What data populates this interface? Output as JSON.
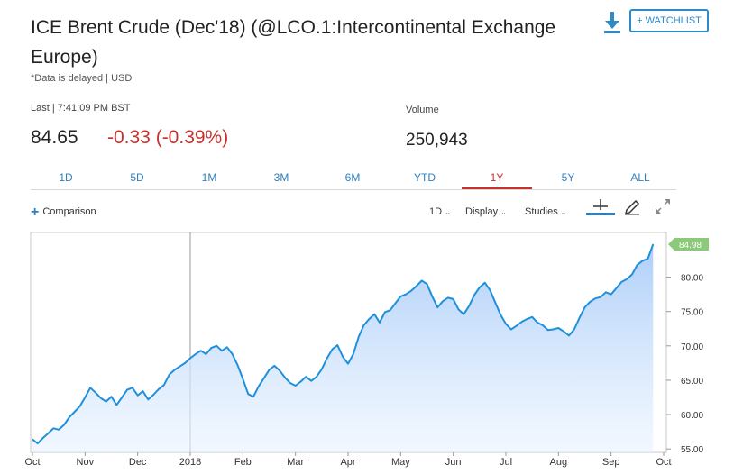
{
  "header": {
    "title": "ICE Brent Crude (Dec'18) (@LCO.1:Intercontinental Exchange Europe)",
    "watchlist_label": "+ WATCHLIST",
    "download_icon": "download-icon",
    "delayed_note": "*Data is delayed | USD"
  },
  "quote": {
    "last_label": "Last | 7:41:09 PM BST",
    "price": "84.65",
    "change": "-0.33 (-0.39%)",
    "change_color": "#c9302c",
    "volume_label": "Volume",
    "volume": "250,943"
  },
  "ranges": [
    "1D",
    "5D",
    "1M",
    "3M",
    "6M",
    "YTD",
    "1Y",
    "5Y",
    "ALL"
  ],
  "active_range": "1Y",
  "toolbar": {
    "comparison_label": "Comparison",
    "interval_label": "1D",
    "display_label": "Display",
    "studies_label": "Studies",
    "crosshair_icon": "crosshair-icon",
    "draw_icon": "pencil-icon",
    "expand_icon": "expand-icon"
  },
  "chart_data": {
    "type": "area",
    "title": "",
    "xlabel": "",
    "ylabel": "",
    "x_ticks": [
      "Oct",
      "Nov",
      "Dec",
      "2018",
      "Feb",
      "Mar",
      "Apr",
      "May",
      "Jun",
      "Jul",
      "Aug",
      "Sep",
      "Oct"
    ],
    "y_ticks": [
      "55.00",
      "60.00",
      "65.00",
      "70.00",
      "75.00",
      "80.00"
    ],
    "ylim": [
      54.5,
      86.5
    ],
    "last_value_label": "84.98",
    "line_color": "#1e90dc",
    "fill_color": "#a9ccf8",
    "grid": "vertical line at year boundary",
    "series": [
      {
        "x": 0,
        "y": 56.4
      },
      {
        "x": 0.1,
        "y": 55.8
      },
      {
        "x": 0.2,
        "y": 56.6
      },
      {
        "x": 0.3,
        "y": 57.3
      },
      {
        "x": 0.4,
        "y": 58.0
      },
      {
        "x": 0.5,
        "y": 57.8
      },
      {
        "x": 0.6,
        "y": 58.5
      },
      {
        "x": 0.7,
        "y": 59.6
      },
      {
        "x": 0.8,
        "y": 60.4
      },
      {
        "x": 0.9,
        "y": 61.2
      },
      {
        "x": 1.0,
        "y": 62.5
      },
      {
        "x": 1.1,
        "y": 63.9
      },
      {
        "x": 1.2,
        "y": 63.2
      },
      {
        "x": 1.3,
        "y": 62.4
      },
      {
        "x": 1.4,
        "y": 61.9
      },
      {
        "x": 1.5,
        "y": 62.6
      },
      {
        "x": 1.6,
        "y": 61.4
      },
      {
        "x": 1.7,
        "y": 62.5
      },
      {
        "x": 1.8,
        "y": 63.6
      },
      {
        "x": 1.9,
        "y": 63.9
      },
      {
        "x": 2.0,
        "y": 62.8
      },
      {
        "x": 2.1,
        "y": 63.4
      },
      {
        "x": 2.2,
        "y": 62.2
      },
      {
        "x": 2.3,
        "y": 62.9
      },
      {
        "x": 2.4,
        "y": 63.7
      },
      {
        "x": 2.5,
        "y": 64.3
      },
      {
        "x": 2.6,
        "y": 65.8
      },
      {
        "x": 2.7,
        "y": 66.5
      },
      {
        "x": 2.8,
        "y": 67.0
      },
      {
        "x": 2.9,
        "y": 67.5
      },
      {
        "x": 3.0,
        "y": 68.2
      },
      {
        "x": 3.1,
        "y": 68.8
      },
      {
        "x": 3.2,
        "y": 69.3
      },
      {
        "x": 3.3,
        "y": 68.8
      },
      {
        "x": 3.4,
        "y": 69.7
      },
      {
        "x": 3.5,
        "y": 70.0
      },
      {
        "x": 3.6,
        "y": 69.3
      },
      {
        "x": 3.7,
        "y": 69.8
      },
      {
        "x": 3.8,
        "y": 68.8
      },
      {
        "x": 3.9,
        "y": 67.2
      },
      {
        "x": 4.0,
        "y": 65.2
      },
      {
        "x": 4.1,
        "y": 63.0
      },
      {
        "x": 4.2,
        "y": 62.6
      },
      {
        "x": 4.3,
        "y": 64.1
      },
      {
        "x": 4.4,
        "y": 65.3
      },
      {
        "x": 4.5,
        "y": 66.5
      },
      {
        "x": 4.6,
        "y": 67.1
      },
      {
        "x": 4.7,
        "y": 66.4
      },
      {
        "x": 4.8,
        "y": 65.4
      },
      {
        "x": 4.9,
        "y": 64.6
      },
      {
        "x": 5.0,
        "y": 64.2
      },
      {
        "x": 5.1,
        "y": 64.8
      },
      {
        "x": 5.2,
        "y": 65.5
      },
      {
        "x": 5.3,
        "y": 64.9
      },
      {
        "x": 5.4,
        "y": 65.5
      },
      {
        "x": 5.5,
        "y": 66.6
      },
      {
        "x": 5.6,
        "y": 68.2
      },
      {
        "x": 5.7,
        "y": 69.5
      },
      {
        "x": 5.8,
        "y": 70.1
      },
      {
        "x": 5.9,
        "y": 68.4
      },
      {
        "x": 6.0,
        "y": 67.4
      },
      {
        "x": 6.1,
        "y": 68.8
      },
      {
        "x": 6.2,
        "y": 71.3
      },
      {
        "x": 6.3,
        "y": 73.0
      },
      {
        "x": 6.4,
        "y": 73.9
      },
      {
        "x": 6.5,
        "y": 74.6
      },
      {
        "x": 6.6,
        "y": 73.4
      },
      {
        "x": 6.7,
        "y": 74.9
      },
      {
        "x": 6.8,
        "y": 75.2
      },
      {
        "x": 6.9,
        "y": 76.2
      },
      {
        "x": 7.0,
        "y": 77.2
      },
      {
        "x": 7.1,
        "y": 77.5
      },
      {
        "x": 7.2,
        "y": 78.0
      },
      {
        "x": 7.3,
        "y": 78.7
      },
      {
        "x": 7.4,
        "y": 79.5
      },
      {
        "x": 7.5,
        "y": 79.0
      },
      {
        "x": 7.6,
        "y": 77.2
      },
      {
        "x": 7.7,
        "y": 75.6
      },
      {
        "x": 7.8,
        "y": 76.5
      },
      {
        "x": 7.9,
        "y": 77.0
      },
      {
        "x": 8.0,
        "y": 76.8
      },
      {
        "x": 8.1,
        "y": 75.3
      },
      {
        "x": 8.2,
        "y": 74.6
      },
      {
        "x": 8.3,
        "y": 75.8
      },
      {
        "x": 8.4,
        "y": 77.4
      },
      {
        "x": 8.5,
        "y": 78.5
      },
      {
        "x": 8.6,
        "y": 79.2
      },
      {
        "x": 8.7,
        "y": 78.1
      },
      {
        "x": 8.8,
        "y": 76.3
      },
      {
        "x": 8.9,
        "y": 74.5
      },
      {
        "x": 9.0,
        "y": 73.2
      },
      {
        "x": 9.1,
        "y": 72.4
      },
      {
        "x": 9.2,
        "y": 72.9
      },
      {
        "x": 9.3,
        "y": 73.5
      },
      {
        "x": 9.4,
        "y": 73.9
      },
      {
        "x": 9.5,
        "y": 74.2
      },
      {
        "x": 9.6,
        "y": 73.4
      },
      {
        "x": 9.7,
        "y": 73.0
      },
      {
        "x": 9.8,
        "y": 72.3
      },
      {
        "x": 9.9,
        "y": 72.4
      },
      {
        "x": 10.0,
        "y": 72.6
      },
      {
        "x": 10.1,
        "y": 72.1
      },
      {
        "x": 10.2,
        "y": 71.5
      },
      {
        "x": 10.3,
        "y": 72.4
      },
      {
        "x": 10.4,
        "y": 74.1
      },
      {
        "x": 10.5,
        "y": 75.6
      },
      {
        "x": 10.6,
        "y": 76.4
      },
      {
        "x": 10.7,
        "y": 76.9
      },
      {
        "x": 10.8,
        "y": 77.1
      },
      {
        "x": 10.9,
        "y": 77.8
      },
      {
        "x": 11.0,
        "y": 77.5
      },
      {
        "x": 11.1,
        "y": 78.4
      },
      {
        "x": 11.2,
        "y": 79.3
      },
      {
        "x": 11.3,
        "y": 79.7
      },
      {
        "x": 11.4,
        "y": 80.4
      },
      {
        "x": 11.5,
        "y": 81.8
      },
      {
        "x": 11.6,
        "y": 82.4
      },
      {
        "x": 11.7,
        "y": 82.7
      },
      {
        "x": 11.8,
        "y": 84.8
      }
    ]
  }
}
